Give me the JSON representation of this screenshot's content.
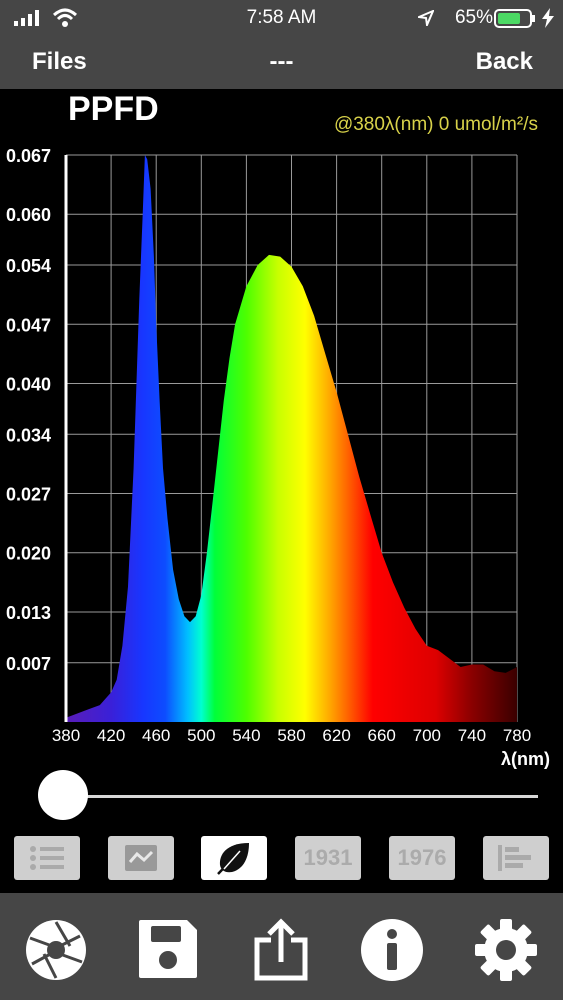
{
  "status_bar": {
    "time": "7:58 AM",
    "battery": "65%"
  },
  "nav": {
    "left": "Files",
    "title": "---",
    "right": "Back"
  },
  "chart_data": {
    "type": "area",
    "title": "PPFD",
    "readout": "@380λ(nm) 0 umol/m²/s",
    "xlabel": "λ(nm)",
    "ylabel": "",
    "xlim": [
      380,
      780
    ],
    "ylim": [
      0,
      0.067
    ],
    "xticks": [
      "380",
      "420",
      "460",
      "500",
      "540",
      "580",
      "620",
      "660",
      "700",
      "740",
      "780"
    ],
    "yticks": [
      "0.007",
      "0.013",
      "0.020",
      "0.027",
      "0.034",
      "0.040",
      "0.047",
      "0.054",
      "0.060",
      "0.067"
    ],
    "grid": true,
    "x": [
      380,
      390,
      400,
      410,
      420,
      425,
      430,
      435,
      440,
      445,
      448,
      450,
      452,
      455,
      458,
      460,
      463,
      466,
      470,
      475,
      480,
      485,
      490,
      495,
      500,
      505,
      510,
      515,
      520,
      525,
      530,
      540,
      550,
      560,
      570,
      580,
      590,
      600,
      610,
      620,
      630,
      640,
      650,
      660,
      670,
      680,
      690,
      700,
      710,
      720,
      730,
      740,
      750,
      760,
      770,
      780
    ],
    "y": [
      0.0005,
      0.001,
      0.0015,
      0.002,
      0.0035,
      0.005,
      0.009,
      0.016,
      0.03,
      0.05,
      0.06,
      0.067,
      0.0665,
      0.063,
      0.055,
      0.047,
      0.038,
      0.03,
      0.024,
      0.018,
      0.0145,
      0.0125,
      0.0118,
      0.0125,
      0.015,
      0.02,
      0.026,
      0.032,
      0.038,
      0.043,
      0.047,
      0.0515,
      0.054,
      0.0552,
      0.055,
      0.0538,
      0.0515,
      0.048,
      0.0435,
      0.039,
      0.034,
      0.029,
      0.0245,
      0.02,
      0.0165,
      0.0135,
      0.011,
      0.009,
      0.0085,
      0.0075,
      0.0065,
      0.0068,
      0.0068,
      0.006,
      0.0058,
      0.0065
    ],
    "slider_value": 380
  },
  "toolbar": {
    "tab_1931": "1931",
    "tab_1976": "1976"
  },
  "colors": {
    "bars": "#464646",
    "readout": "#d8d24a",
    "tab": "#cfcfcf",
    "tab_active": "#ffffff"
  }
}
